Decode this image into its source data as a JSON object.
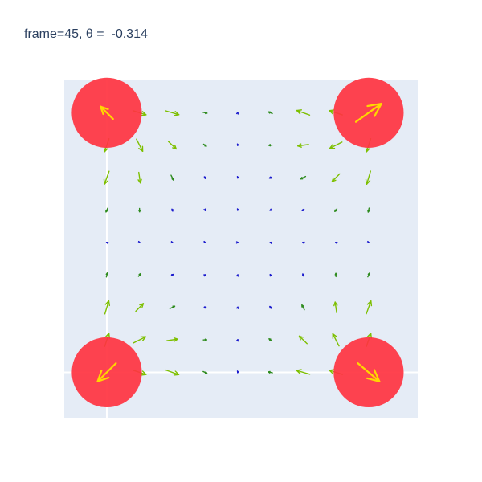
{
  "title": "frame=45, θ =  -0.314",
  "colors": {
    "plot_bg": "#e5ecf6",
    "zero_line": "#ffffff",
    "circle_fill": "#ff3340",
    "circle_arrow": "#ffd700",
    "field_strong": "#7dbf00",
    "field_mid": "#2e8b1e",
    "field_weak": "#1a1acd"
  },
  "chart_data": {
    "type": "quiver",
    "title": "frame=45, θ =  -0.314",
    "xlim": [
      -1.3,
      9.5
    ],
    "ylim": [
      -1.4,
      9.0
    ],
    "grid": false,
    "zero_lines": true,
    "circles": [
      {
        "x": 0,
        "y": 8,
        "r": 1.07,
        "dx": -0.38,
        "dy": 0.38
      },
      {
        "x": 8,
        "y": 8,
        "r": 1.07,
        "dx": 0.78,
        "dy": 0.56
      },
      {
        "x": 0,
        "y": 0,
        "r": 1.07,
        "dx": -0.56,
        "dy": -0.56
      },
      {
        "x": 8,
        "y": 0,
        "r": 1.07,
        "dx": 0.66,
        "dy": -0.56
      }
    ],
    "field": {
      "x": [
        0,
        1,
        2,
        3,
        4,
        5,
        6,
        7,
        8
      ],
      "y": [
        0,
        1,
        2,
        3,
        4,
        5,
        6,
        7,
        8
      ],
      "theta": -0.314
    }
  }
}
